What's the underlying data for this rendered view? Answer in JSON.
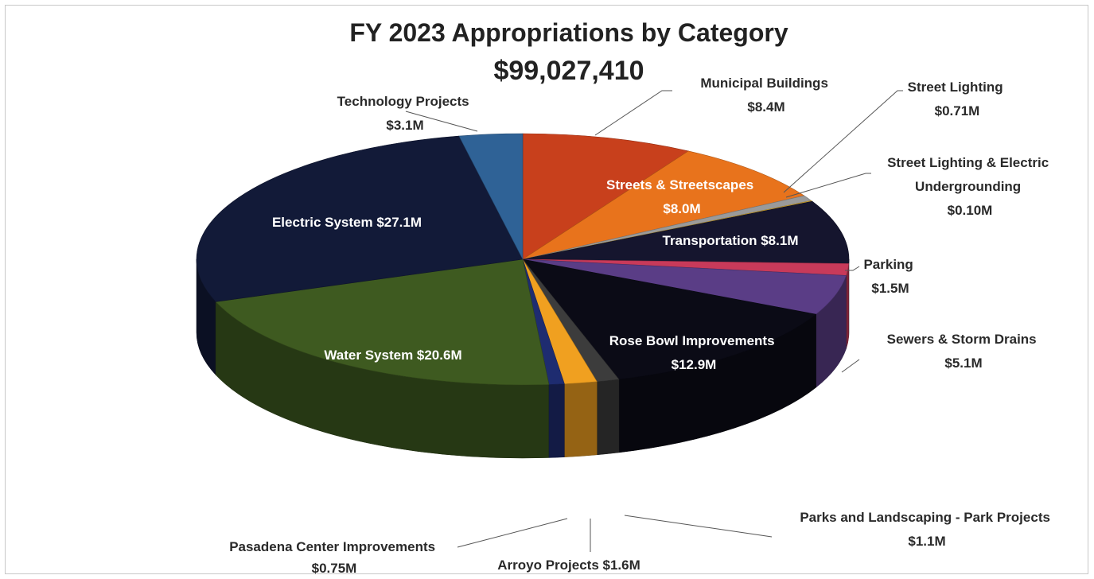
{
  "chart_data": {
    "type": "pie",
    "title": "FY 2023 Appropriations by Category",
    "subtitle": "$99,027,410",
    "units": "$M",
    "slices": [
      {
        "name": "Municipal Buildings",
        "value": 8.4,
        "value_label": "$8.4M",
        "color": "#c8401c"
      },
      {
        "name": "Streets & Streetscapes",
        "value": 8.0,
        "value_label": "$8.0M",
        "color": "#e8731c"
      },
      {
        "name": "Street Lighting",
        "value": 0.71,
        "value_label": "$0.71M",
        "color": "#9a9a9a"
      },
      {
        "name": "Street Lighting & Electric Undergrounding",
        "value": 0.1,
        "value_label": "$0.10M",
        "color": "#e0b030"
      },
      {
        "name": "Transportation",
        "value": 8.1,
        "value_label": "$8.1M",
        "color": "#15152e"
      },
      {
        "name": "Parking",
        "value": 1.5,
        "value_label": "$1.5M",
        "color": "#c83a5a"
      },
      {
        "name": "Sewers & Storm Drains",
        "value": 5.1,
        "value_label": "$5.1M",
        "color": "#5a3d86"
      },
      {
        "name": "Rose Bowl Improvements",
        "value": 12.9,
        "value_label": "$12.9M",
        "color": "#0b0b16"
      },
      {
        "name": "Parks and Landscaping - Park Projects",
        "value": 1.1,
        "value_label": "$1.1M",
        "color": "#3c3c3c"
      },
      {
        "name": "Arroyo Projects",
        "value": 1.6,
        "value_label": "$1.6M",
        "color": "#f0a020"
      },
      {
        "name": "Pasadena Center Improvements",
        "value": 0.75,
        "value_label": "$0.75M",
        "color": "#1e2c70"
      },
      {
        "name": "Water System",
        "value": 20.6,
        "value_label": "$20.6M",
        "color": "#3e5a20"
      },
      {
        "name": "Electric System",
        "value": 27.1,
        "value_label": "$27.1M",
        "color": "#121a38"
      },
      {
        "name": "Technology Projects",
        "value": 3.1,
        "value_label": "$3.1M",
        "color": "#2f6296"
      }
    ],
    "labels": {
      "municipal_buildings": [
        "Municipal Buildings",
        "$8.4M"
      ],
      "streets": [
        "Streets & Streetscapes",
        "$8.0M"
      ],
      "street_lighting": [
        "Street Lighting",
        "$0.71M"
      ],
      "undergrounding": [
        "Street Lighting & Electric",
        "Undergrounding",
        "$0.10M"
      ],
      "transportation": "Transportation $8.1M",
      "parking": [
        "Parking",
        "$1.5M"
      ],
      "sewers": [
        "Sewers & Storm Drains",
        "$5.1M"
      ],
      "rose_bowl": [
        "Rose Bowl Improvements",
        "$12.9M"
      ],
      "parks": [
        "Parks and Landscaping - Park Projects",
        "$1.1M"
      ],
      "arroyo": "Arroyo Projects $1.6M",
      "pasadena": [
        "Pasadena Center Improvements",
        "$0.75M"
      ],
      "water": "Water System $20.6M",
      "electric": "Electric System $27.1M",
      "technology": [
        "Technology Projects",
        "$3.1M"
      ]
    }
  }
}
